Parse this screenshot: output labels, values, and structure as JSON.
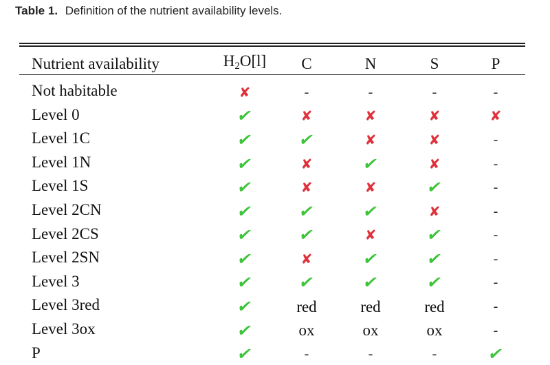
{
  "caption": {
    "label": "Table 1.",
    "text": "Definition of the nutrient availability levels."
  },
  "header": {
    "nutrient_availability": "Nutrient availability",
    "h2o_prefix": "H",
    "h2o_sub": "2",
    "h2o_suffix": "O[l]",
    "c": "C",
    "n": "N",
    "s": "S",
    "p": "P"
  },
  "colors": {
    "check": "#3ec43a",
    "cross": "#e0303a"
  },
  "symbols": {
    "check": "✔",
    "cross": "✘",
    "dash": "-"
  },
  "rows": [
    {
      "name": "Not habitable",
      "cells": [
        "cross",
        "dash",
        "dash",
        "dash",
        "dash"
      ]
    },
    {
      "name": "Level 0",
      "cells": [
        "check",
        "cross",
        "cross",
        "cross",
        "cross"
      ]
    },
    {
      "name": "Level 1C",
      "cells": [
        "check",
        "check",
        "cross",
        "cross",
        "dash"
      ]
    },
    {
      "name": "Level 1N",
      "cells": [
        "check",
        "cross",
        "check",
        "cross",
        "dash"
      ]
    },
    {
      "name": "Level 1S",
      "cells": [
        "check",
        "cross",
        "cross",
        "check",
        "dash"
      ]
    },
    {
      "name": "Level 2CN",
      "cells": [
        "check",
        "check",
        "check",
        "cross",
        "dash"
      ]
    },
    {
      "name": "Level 2CS",
      "cells": [
        "check",
        "check",
        "cross",
        "check",
        "dash"
      ]
    },
    {
      "name": "Level 2SN",
      "cells": [
        "check",
        "cross",
        "check",
        "check",
        "dash"
      ]
    },
    {
      "name": "Level 3",
      "cells": [
        "check",
        "check",
        "check",
        "check",
        "dash"
      ]
    },
    {
      "name": "Level 3red",
      "cells": [
        "check",
        "red",
        "red",
        "red",
        "dash"
      ]
    },
    {
      "name": "Level 3ox",
      "cells": [
        "check",
        "ox",
        "ox",
        "ox",
        "dash"
      ]
    },
    {
      "name": "P",
      "cells": [
        "check",
        "dash",
        "dash",
        "dash",
        "check"
      ]
    }
  ]
}
